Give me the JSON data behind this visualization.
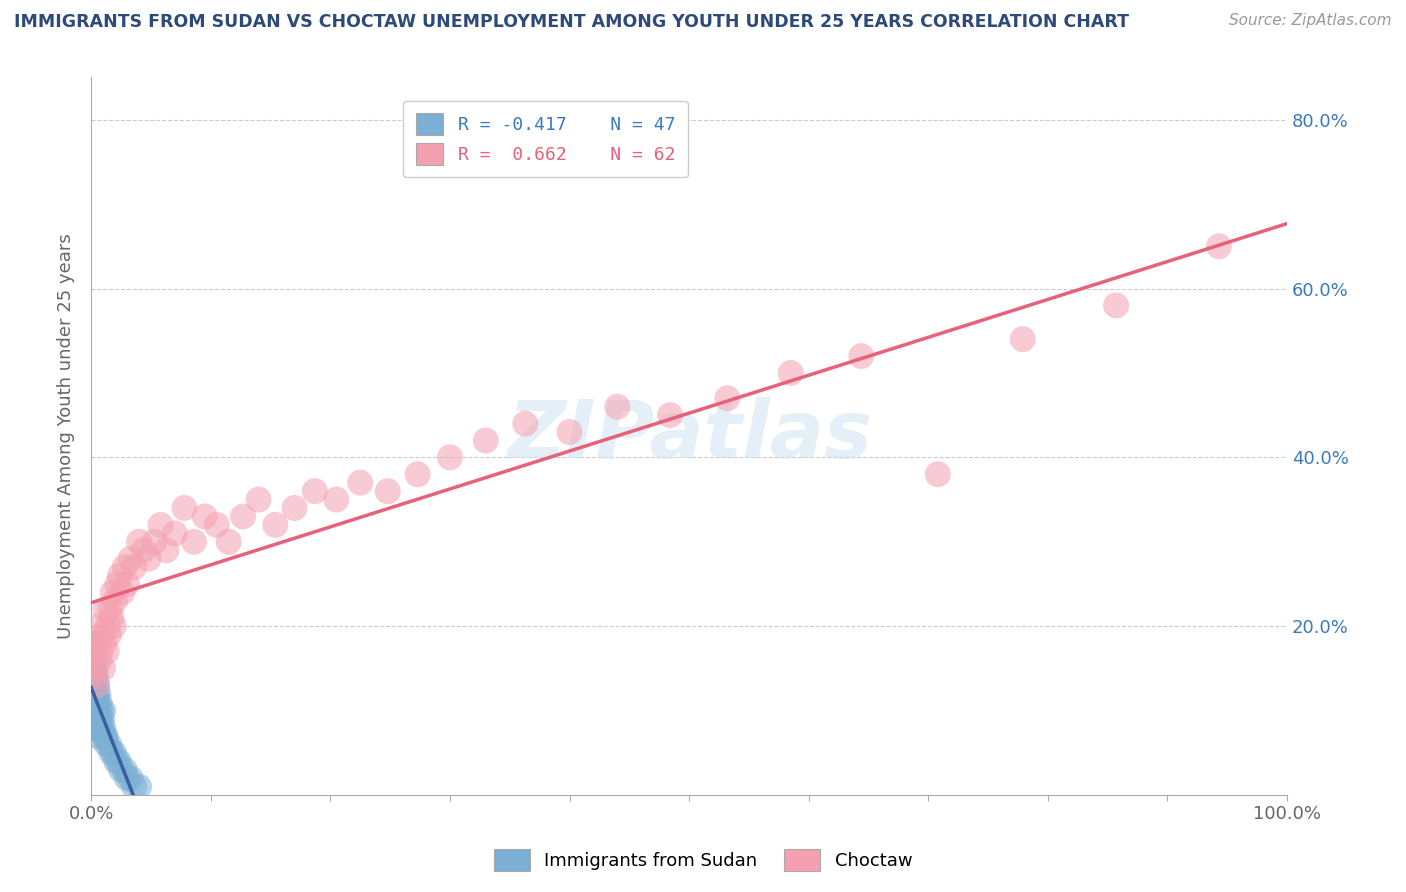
{
  "title": "IMMIGRANTS FROM SUDAN VS CHOCTAW UNEMPLOYMENT AMONG YOUTH UNDER 25 YEARS CORRELATION CHART",
  "title_color": "#2d4a7a",
  "source_text": "Source: ZipAtlas.com",
  "ylabel": "Unemployment Among Youth under 25 years",
  "xlim": [
    0.0,
    1.0
  ],
  "ylim": [
    0.0,
    0.85
  ],
  "xticks": [
    0.0,
    0.1,
    0.2,
    0.3,
    0.4,
    0.5,
    0.6,
    0.7,
    0.8,
    0.9,
    1.0
  ],
  "xticklabels": [
    "0.0%",
    "",
    "",
    "",
    "",
    "",
    "",
    "",
    "",
    "",
    "100.0%"
  ],
  "ytick_positions": [
    0.0,
    0.2,
    0.4,
    0.6,
    0.8
  ],
  "yticklabels_left": [
    "",
    "",
    "",
    "",
    ""
  ],
  "yticklabels_right": [
    "",
    "20.0%",
    "40.0%",
    "60.0%",
    "80.0%"
  ],
  "legend_r1": "R = -0.417",
  "legend_n1": "N = 47",
  "legend_r2": "R =  0.662",
  "legend_n2": "N = 62",
  "sudan_color": "#7bafd4",
  "choctaw_color": "#f4a0b0",
  "sudan_line_color": "#3a5fa0",
  "choctaw_line_color": "#e8607a",
  "watermark": "ZIPatlas",
  "background_color": "#ffffff",
  "grid_color": "#cccccc",
  "sudan_x": [
    0.001,
    0.001,
    0.001,
    0.001,
    0.001,
    0.002,
    0.002,
    0.002,
    0.002,
    0.002,
    0.003,
    0.003,
    0.003,
    0.003,
    0.003,
    0.004,
    0.004,
    0.004,
    0.004,
    0.005,
    0.005,
    0.005,
    0.005,
    0.006,
    0.006,
    0.006,
    0.007,
    0.007,
    0.008,
    0.008,
    0.009,
    0.01,
    0.01,
    0.011,
    0.012,
    0.013,
    0.015,
    0.017,
    0.019,
    0.021,
    0.023,
    0.025,
    0.028,
    0.03,
    0.033,
    0.036,
    0.04
  ],
  "sudan_y": [
    0.1,
    0.12,
    0.14,
    0.16,
    0.18,
    0.09,
    0.11,
    0.13,
    0.15,
    0.17,
    0.08,
    0.1,
    0.12,
    0.14,
    0.16,
    0.08,
    0.1,
    0.12,
    0.14,
    0.07,
    0.09,
    0.11,
    0.13,
    0.08,
    0.1,
    0.12,
    0.09,
    0.11,
    0.08,
    0.1,
    0.09,
    0.08,
    0.1,
    0.07,
    0.07,
    0.06,
    0.06,
    0.05,
    0.05,
    0.04,
    0.04,
    0.03,
    0.03,
    0.02,
    0.02,
    0.01,
    0.01
  ],
  "choctaw_x": [
    0.001,
    0.002,
    0.003,
    0.004,
    0.005,
    0.005,
    0.006,
    0.007,
    0.008,
    0.009,
    0.01,
    0.011,
    0.012,
    0.013,
    0.014,
    0.015,
    0.016,
    0.017,
    0.018,
    0.019,
    0.02,
    0.022,
    0.024,
    0.026,
    0.028,
    0.03,
    0.033,
    0.036,
    0.04,
    0.044,
    0.048,
    0.053,
    0.058,
    0.063,
    0.07,
    0.078,
    0.086,
    0.095,
    0.105,
    0.115,
    0.127,
    0.14,
    0.154,
    0.17,
    0.187,
    0.205,
    0.225,
    0.248,
    0.273,
    0.3,
    0.33,
    0.363,
    0.4,
    0.44,
    0.484,
    0.532,
    0.585,
    0.644,
    0.708,
    0.779,
    0.857,
    0.943
  ],
  "choctaw_y": [
    0.17,
    0.14,
    0.18,
    0.15,
    0.2,
    0.13,
    0.18,
    0.16,
    0.17,
    0.19,
    0.15,
    0.18,
    0.22,
    0.17,
    0.2,
    0.19,
    0.22,
    0.21,
    0.24,
    0.2,
    0.23,
    0.25,
    0.26,
    0.24,
    0.27,
    0.25,
    0.28,
    0.27,
    0.3,
    0.29,
    0.28,
    0.3,
    0.32,
    0.29,
    0.31,
    0.34,
    0.3,
    0.33,
    0.32,
    0.3,
    0.33,
    0.35,
    0.32,
    0.34,
    0.36,
    0.35,
    0.37,
    0.36,
    0.38,
    0.4,
    0.42,
    0.44,
    0.43,
    0.46,
    0.45,
    0.47,
    0.5,
    0.52,
    0.38,
    0.54,
    0.58,
    0.65
  ]
}
